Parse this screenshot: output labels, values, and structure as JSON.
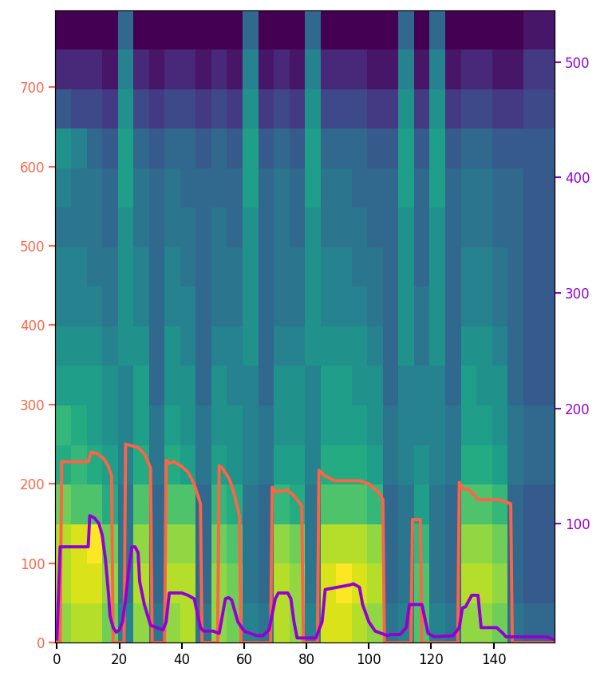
{
  "chart_data": {
    "type": "heatmap",
    "xlim": [
      -0.5,
      159.5
    ],
    "xticks": [
      0,
      20,
      40,
      60,
      80,
      100,
      120,
      140
    ],
    "ylim": [
      0,
      797
    ],
    "yticks": [
      0,
      100,
      200,
      300,
      400,
      500,
      600,
      700
    ],
    "y2lim": [
      -3,
      545
    ],
    "y2ticks": [
      100,
      200,
      300,
      400,
      500
    ],
    "cells": [
      [
        0.8,
        0.85,
        0.85,
        0.75,
        0.45,
        0.8,
        0.4,
        0.8,
        0.85,
        0.4,
        0.8,
        0.75,
        0.45,
        0.4,
        0.85,
        0.8,
        0.45,
        0.9,
        0.9,
        0.85,
        0.8,
        0.4,
        0.45,
        0.7,
        0.45,
        0.4,
        0.8,
        0.8,
        0.75,
        0.4,
        0.35,
        0.35
      ],
      [
        0.85,
        0.9,
        0.9,
        0.8,
        0.4,
        0.85,
        0.35,
        0.85,
        0.85,
        0.35,
        0.8,
        0.75,
        0.4,
        0.35,
        0.85,
        0.8,
        0.4,
        0.9,
        0.95,
        0.9,
        0.85,
        0.35,
        0.4,
        0.7,
        0.4,
        0.35,
        0.85,
        0.85,
        0.8,
        0.35,
        0.3,
        0.3
      ],
      [
        0.85,
        0.9,
        0.95,
        0.75,
        0.4,
        0.8,
        0.35,
        0.8,
        0.8,
        0.35,
        0.75,
        0.7,
        0.4,
        0.35,
        0.8,
        0.75,
        0.4,
        0.85,
        0.85,
        0.85,
        0.8,
        0.35,
        0.4,
        0.65,
        0.4,
        0.35,
        0.8,
        0.8,
        0.75,
        0.35,
        0.3,
        0.3
      ],
      [
        0.75,
        0.7,
        0.7,
        0.6,
        0.4,
        0.7,
        0.35,
        0.7,
        0.7,
        0.35,
        0.65,
        0.6,
        0.4,
        0.35,
        0.65,
        0.6,
        0.4,
        0.7,
        0.7,
        0.7,
        0.65,
        0.35,
        0.4,
        0.55,
        0.4,
        0.35,
        0.7,
        0.7,
        0.65,
        0.35,
        0.3,
        0.3
      ],
      [
        0.6,
        0.65,
        0.6,
        0.55,
        0.45,
        0.6,
        0.4,
        0.6,
        0.55,
        0.4,
        0.55,
        0.5,
        0.45,
        0.4,
        0.55,
        0.55,
        0.45,
        0.6,
        0.6,
        0.6,
        0.55,
        0.4,
        0.45,
        0.5,
        0.45,
        0.4,
        0.6,
        0.6,
        0.55,
        0.4,
        0.35,
        0.35
      ],
      [
        0.65,
        0.6,
        0.55,
        0.5,
        0.45,
        0.55,
        0.4,
        0.55,
        0.5,
        0.4,
        0.5,
        0.5,
        0.45,
        0.4,
        0.5,
        0.5,
        0.45,
        0.55,
        0.55,
        0.55,
        0.5,
        0.4,
        0.45,
        0.45,
        0.45,
        0.4,
        0.55,
        0.55,
        0.5,
        0.4,
        0.35,
        0.35
      ],
      [
        0.55,
        0.55,
        0.55,
        0.5,
        0.45,
        0.55,
        0.35,
        0.5,
        0.5,
        0.35,
        0.5,
        0.45,
        0.45,
        0.35,
        0.5,
        0.5,
        0.45,
        0.55,
        0.55,
        0.5,
        0.5,
        0.35,
        0.45,
        0.45,
        0.45,
        0.35,
        0.55,
        0.5,
        0.5,
        0.35,
        0.3,
        0.3
      ],
      [
        0.5,
        0.5,
        0.5,
        0.45,
        0.5,
        0.5,
        0.35,
        0.5,
        0.45,
        0.35,
        0.45,
        0.45,
        0.5,
        0.35,
        0.45,
        0.45,
        0.5,
        0.5,
        0.5,
        0.5,
        0.45,
        0.35,
        0.5,
        0.4,
        0.5,
        0.35,
        0.5,
        0.5,
        0.45,
        0.35,
        0.3,
        0.3
      ],
      [
        0.45,
        0.45,
        0.45,
        0.4,
        0.5,
        0.45,
        0.35,
        0.45,
        0.45,
        0.35,
        0.4,
        0.4,
        0.5,
        0.35,
        0.4,
        0.4,
        0.5,
        0.45,
        0.45,
        0.45,
        0.4,
        0.35,
        0.5,
        0.4,
        0.5,
        0.35,
        0.45,
        0.45,
        0.4,
        0.35,
        0.3,
        0.3
      ],
      [
        0.45,
        0.45,
        0.4,
        0.4,
        0.5,
        0.45,
        0.35,
        0.45,
        0.4,
        0.35,
        0.4,
        0.4,
        0.5,
        0.35,
        0.4,
        0.4,
        0.5,
        0.45,
        0.45,
        0.4,
        0.4,
        0.35,
        0.5,
        0.35,
        0.5,
        0.35,
        0.45,
        0.45,
        0.4,
        0.35,
        0.3,
        0.3
      ],
      [
        0.4,
        0.4,
        0.4,
        0.35,
        0.5,
        0.4,
        0.35,
        0.4,
        0.4,
        0.35,
        0.4,
        0.35,
        0.5,
        0.35,
        0.4,
        0.35,
        0.5,
        0.4,
        0.4,
        0.4,
        0.35,
        0.35,
        0.5,
        0.35,
        0.5,
        0.35,
        0.4,
        0.4,
        0.35,
        0.35,
        0.3,
        0.3
      ],
      [
        0.45,
        0.4,
        0.4,
        0.35,
        0.55,
        0.4,
        0.35,
        0.4,
        0.35,
        0.35,
        0.35,
        0.35,
        0.55,
        0.35,
        0.4,
        0.35,
        0.55,
        0.4,
        0.4,
        0.35,
        0.35,
        0.35,
        0.55,
        0.35,
        0.55,
        0.35,
        0.4,
        0.4,
        0.35,
        0.35,
        0.3,
        0.3
      ],
      [
        0.5,
        0.45,
        0.35,
        0.3,
        0.55,
        0.35,
        0.3,
        0.35,
        0.35,
        0.3,
        0.35,
        0.3,
        0.55,
        0.3,
        0.35,
        0.3,
        0.55,
        0.35,
        0.35,
        0.35,
        0.3,
        0.3,
        0.55,
        0.3,
        0.55,
        0.3,
        0.35,
        0.35,
        0.3,
        0.3,
        0.3,
        0.3
      ],
      [
        0.3,
        0.25,
        0.25,
        0.2,
        0.5,
        0.25,
        0.2,
        0.25,
        0.25,
        0.2,
        0.25,
        0.2,
        0.5,
        0.2,
        0.25,
        0.2,
        0.5,
        0.25,
        0.25,
        0.25,
        0.2,
        0.2,
        0.5,
        0.2,
        0.5,
        0.2,
        0.25,
        0.25,
        0.2,
        0.2,
        0.25,
        0.25
      ],
      [
        0.15,
        0.15,
        0.15,
        0.1,
        0.45,
        0.15,
        0.1,
        0.15,
        0.15,
        0.1,
        0.15,
        0.1,
        0.45,
        0.1,
        0.15,
        0.1,
        0.45,
        0.15,
        0.15,
        0.15,
        0.1,
        0.1,
        0.45,
        0.1,
        0.45,
        0.1,
        0.15,
        0.15,
        0.1,
        0.1,
        0.2,
        0.2
      ],
      [
        0.05,
        0.05,
        0.05,
        0.05,
        0.35,
        0.05,
        0.05,
        0.05,
        0.05,
        0.05,
        0.05,
        0.05,
        0.35,
        0.05,
        0.05,
        0.05,
        0.35,
        0.05,
        0.05,
        0.05,
        0.05,
        0.05,
        0.35,
        0.05,
        0.35,
        0.05,
        0.05,
        0.05,
        0.05,
        0.05,
        0.1,
        0.1
      ]
    ],
    "series": [
      {
        "type": "line",
        "color": "#ff6347",
        "x": [
          0,
          1,
          1.5,
          10,
          11,
          13,
          15,
          16.5,
          17.5,
          18,
          21.5,
          22,
          24,
          26,
          28,
          30,
          30.5,
          34.5,
          35,
          36,
          37.5,
          40,
          42,
          44,
          46,
          46.5,
          51.5,
          52,
          53,
          55,
          56,
          57,
          58.5,
          59,
          68.5,
          69,
          70,
          74,
          76,
          78.5,
          79,
          83.5,
          84,
          86,
          89,
          97,
          100,
          103,
          104.5,
          105,
          113.5,
          114,
          116.5,
          117,
          128.5,
          129,
          130,
          132,
          134,
          135,
          142,
          145.5,
          146,
          159
        ],
        "values": [
          0,
          0,
          228,
          228,
          240,
          238,
          232,
          222,
          210,
          0,
          0,
          250,
          248,
          246,
          238,
          220,
          0,
          0,
          230,
          226,
          228,
          222,
          215,
          200,
          175,
          0,
          0,
          223,
          220,
          208,
          198,
          185,
          160,
          0,
          0,
          196,
          190,
          192,
          185,
          172,
          0,
          0,
          217,
          210,
          204,
          204,
          200,
          190,
          180,
          0,
          0,
          155,
          155,
          0,
          0,
          202,
          194,
          193,
          185,
          180,
          180,
          175,
          0,
          0
        ]
      },
      {
        "type": "line",
        "color": "#9400d3",
        "axis": "y2",
        "x": [
          0,
          1,
          10,
          10.5,
          12,
          13.5,
          14.5,
          15.5,
          16.5,
          17,
          18,
          19,
          20,
          21,
          22,
          23,
          24,
          25,
          26,
          26.5,
          28,
          30,
          32,
          34,
          35,
          36,
          40,
          42,
          44,
          46,
          47,
          50,
          52,
          53,
          54,
          55,
          56,
          58,
          60,
          64,
          66,
          68,
          70,
          71,
          74,
          75,
          76,
          77,
          83,
          85,
          86,
          90,
          94,
          95,
          97,
          98,
          100,
          102,
          104,
          106,
          107,
          110,
          112,
          113,
          117,
          119,
          121,
          127,
          129,
          130,
          131,
          133,
          135,
          136,
          140,
          141,
          143,
          144,
          155,
          157,
          159
        ],
        "values": [
          0,
          80,
          80,
          107,
          105,
          100,
          90,
          70,
          40,
          20,
          10,
          6,
          8,
          15,
          35,
          60,
          80,
          80,
          75,
          50,
          30,
          12,
          10,
          8,
          15,
          40,
          40,
          38,
          35,
          10,
          7,
          7,
          5,
          20,
          35,
          36,
          34,
          15,
          7,
          3,
          3,
          8,
          35,
          40,
          40,
          35,
          15,
          1,
          1,
          15,
          43,
          45,
          47,
          48,
          45,
          30,
          15,
          7,
          5,
          3,
          4,
          4,
          10,
          30,
          30,
          5,
          2,
          3,
          10,
          27,
          28,
          38,
          38,
          10,
          10,
          10,
          5,
          2,
          2,
          2,
          0
        ]
      }
    ]
  }
}
